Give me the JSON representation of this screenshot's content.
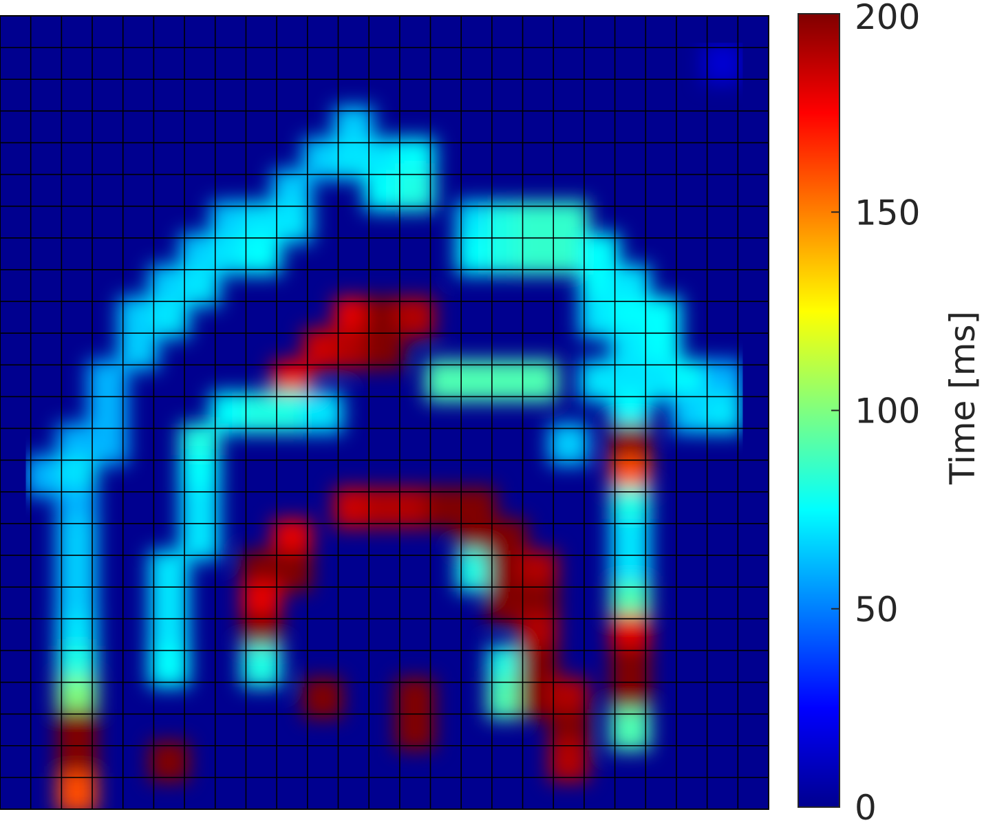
{
  "chart_data": {
    "type": "heatmap",
    "title": "",
    "xlabel": "",
    "ylabel": "",
    "grid": true,
    "grid_size": [
      25,
      25
    ],
    "colormap": "jet",
    "colorbar": {
      "label": "Time [ms]",
      "range": [
        0,
        200
      ],
      "ticks": [
        0,
        50,
        100,
        150,
        200
      ],
      "tick_labels": [
        "0",
        "50",
        "100",
        "150",
        "200"
      ],
      "placement": "right"
    },
    "background_value": 0,
    "values": [
      [
        0,
        0,
        0,
        0,
        0,
        0,
        0,
        0,
        0,
        0,
        0,
        0,
        0,
        0,
        0,
        0,
        0,
        0,
        0,
        0,
        0,
        0,
        0,
        0,
        0
      ],
      [
        0,
        0,
        0,
        0,
        0,
        0,
        0,
        0,
        0,
        0,
        0,
        0,
        0,
        0,
        0,
        0,
        0,
        0,
        0,
        0,
        0,
        0,
        0,
        15,
        0
      ],
      [
        0,
        0,
        0,
        0,
        0,
        0,
        0,
        0,
        0,
        0,
        0,
        0,
        0,
        0,
        0,
        0,
        0,
        0,
        0,
        0,
        0,
        0,
        0,
        0,
        0
      ],
      [
        0,
        0,
        0,
        0,
        0,
        0,
        0,
        0,
        0,
        0,
        0,
        65,
        0,
        0,
        0,
        0,
        0,
        0,
        0,
        0,
        0,
        0,
        0,
        0,
        0
      ],
      [
        0,
        0,
        0,
        0,
        0,
        0,
        0,
        0,
        0,
        0,
        65,
        70,
        70,
        75,
        0,
        0,
        0,
        0,
        0,
        0,
        0,
        0,
        0,
        0,
        0
      ],
      [
        0,
        0,
        0,
        0,
        0,
        0,
        0,
        0,
        0,
        65,
        0,
        0,
        75,
        80,
        0,
        0,
        0,
        0,
        0,
        0,
        0,
        0,
        0,
        0,
        0
      ],
      [
        0,
        0,
        0,
        0,
        0,
        0,
        0,
        65,
        70,
        70,
        0,
        0,
        0,
        0,
        0,
        70,
        80,
        85,
        85,
        0,
        0,
        0,
        0,
        0,
        0
      ],
      [
        0,
        0,
        0,
        0,
        0,
        0,
        65,
        70,
        75,
        0,
        0,
        0,
        0,
        0,
        0,
        75,
        80,
        85,
        85,
        75,
        0,
        0,
        0,
        0,
        0
      ],
      [
        0,
        0,
        0,
        0,
        0,
        65,
        70,
        0,
        0,
        0,
        0,
        0,
        0,
        0,
        0,
        0,
        0,
        0,
        0,
        75,
        70,
        0,
        0,
        0,
        0
      ],
      [
        0,
        0,
        0,
        0,
        65,
        70,
        0,
        0,
        0,
        0,
        0,
        180,
        200,
        190,
        0,
        0,
        0,
        0,
        0,
        70,
        75,
        75,
        0,
        0,
        0
      ],
      [
        0,
        0,
        0,
        0,
        65,
        0,
        0,
        0,
        0,
        0,
        185,
        190,
        200,
        0,
        0,
        0,
        0,
        0,
        0,
        0,
        70,
        75,
        0,
        0,
        0
      ],
      [
        0,
        0,
        0,
        60,
        0,
        0,
        0,
        0,
        0,
        180,
        0,
        0,
        0,
        0,
        90,
        90,
        90,
        90,
        0,
        70,
        70,
        70,
        75,
        60,
        0
      ],
      [
        0,
        0,
        0,
        60,
        0,
        0,
        0,
        75,
        80,
        80,
        70,
        0,
        0,
        0,
        0,
        0,
        0,
        0,
        0,
        0,
        75,
        0,
        65,
        70,
        0
      ],
      [
        0,
        0,
        60,
        60,
        0,
        0,
        80,
        0,
        0,
        0,
        0,
        0,
        0,
        0,
        0,
        0,
        0,
        0,
        65,
        0,
        200,
        0,
        0,
        0,
        0
      ],
      [
        0,
        60,
        70,
        0,
        0,
        0,
        75,
        0,
        0,
        0,
        0,
        0,
        0,
        0,
        0,
        0,
        0,
        0,
        0,
        0,
        160,
        0,
        0,
        0,
        0
      ],
      [
        0,
        0,
        60,
        0,
        0,
        0,
        70,
        0,
        0,
        0,
        0,
        185,
        190,
        190,
        200,
        200,
        0,
        0,
        0,
        0,
        80,
        0,
        0,
        0,
        0
      ],
      [
        0,
        0,
        65,
        0,
        0,
        0,
        70,
        0,
        0,
        180,
        0,
        0,
        0,
        0,
        0,
        200,
        200,
        0,
        0,
        0,
        70,
        0,
        0,
        0,
        0
      ],
      [
        0,
        0,
        65,
        0,
        0,
        70,
        0,
        0,
        200,
        200,
        0,
        0,
        0,
        0,
        0,
        80,
        200,
        190,
        0,
        0,
        70,
        0,
        0,
        0,
        0
      ],
      [
        0,
        0,
        65,
        0,
        0,
        70,
        0,
        0,
        180,
        0,
        0,
        0,
        0,
        0,
        0,
        0,
        200,
        200,
        0,
        0,
        90,
        0,
        0,
        0,
        0
      ],
      [
        0,
        0,
        70,
        0,
        0,
        70,
        0,
        0,
        200,
        0,
        0,
        0,
        0,
        0,
        0,
        0,
        0,
        190,
        0,
        0,
        180,
        0,
        0,
        0,
        0
      ],
      [
        0,
        0,
        80,
        0,
        0,
        75,
        0,
        0,
        80,
        0,
        0,
        0,
        0,
        0,
        0,
        0,
        80,
        200,
        0,
        0,
        200,
        0,
        0,
        0,
        0
      ],
      [
        0,
        0,
        100,
        0,
        0,
        0,
        0,
        0,
        0,
        0,
        200,
        0,
        0,
        200,
        0,
        0,
        90,
        200,
        190,
        0,
        200,
        0,
        0,
        0,
        0
      ],
      [
        0,
        0,
        200,
        0,
        0,
        0,
        0,
        0,
        0,
        0,
        0,
        0,
        0,
        200,
        0,
        0,
        0,
        0,
        200,
        0,
        90,
        0,
        0,
        0,
        0
      ],
      [
        0,
        0,
        200,
        0,
        0,
        200,
        0,
        0,
        0,
        0,
        0,
        0,
        0,
        0,
        0,
        0,
        0,
        0,
        190,
        0,
        0,
        0,
        0,
        0,
        0
      ],
      [
        0,
        0,
        160,
        0,
        0,
        0,
        0,
        0,
        0,
        0,
        0,
        0,
        0,
        0,
        0,
        0,
        0,
        0,
        0,
        0,
        0,
        0,
        0,
        0,
        0
      ]
    ]
  }
}
